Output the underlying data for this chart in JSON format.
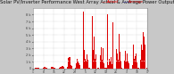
{
  "title": "Solar PV/Inverter Performance West Array Actual & Average Power Output",
  "title_fontsize": 3.8,
  "bg_color": "#c8c8c8",
  "plot_bg_color": "#ffffff",
  "grid_color": "#aaaaaa",
  "bar_color": "#dd0000",
  "avg_line_color": "#ffffff",
  "ylim": [
    0,
    9000
  ],
  "yticks": [
    0,
    1000,
    2000,
    3000,
    4000,
    5000,
    6000,
    7000,
    8000
  ],
  "ytick_labels": [
    "0",
    "1 k",
    "2 k",
    "3 k",
    "4 k",
    "5 k",
    "6 k",
    "7 k",
    "8 k"
  ],
  "n_bars": 200,
  "avg_value": 1200,
  "legend_actual_color": "#ff0000",
  "legend_avg_color": "#0000cc",
  "spine_color": "#888888",
  "tick_color": "#333333"
}
